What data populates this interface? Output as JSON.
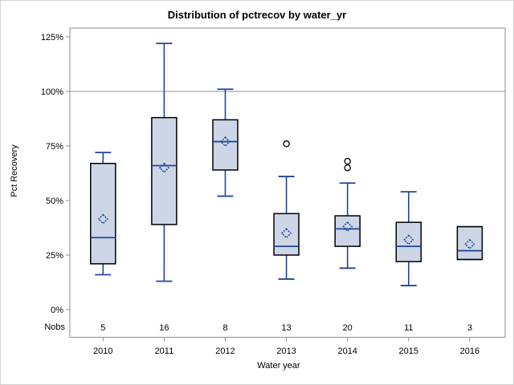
{
  "figure": {
    "title": "Distribution of pctrecov by water_yr",
    "y_axis_label": "Pct Recovery",
    "x_axis_label": "Water year",
    "nobs_row_label": "Nobs"
  },
  "colors": {
    "box_fill": "#cdd6e7",
    "box_border": "#000000",
    "blue_line": "#1f4698",
    "frame_gray": "#8e8e8e",
    "refline_gray": "#a8a8a8",
    "outlier_stroke": "#000000",
    "page_border": "#d2d2d2"
  },
  "chart_data": {
    "type": "boxplot",
    "title": "Distribution of pctrecov by water_yr",
    "xlabel": "Water year",
    "ylabel": "Pct Recovery",
    "ylim": [
      0,
      125
    ],
    "y_tick_values": [
      0,
      25,
      50,
      75,
      100,
      125
    ],
    "y_tick_labels": [
      "0%",
      "25%",
      "50%",
      "75%",
      "100%",
      "125%"
    ],
    "refline_pct": 100,
    "grid": false,
    "legend": "none",
    "categories": [
      "2010",
      "2011",
      "2012",
      "2013",
      "2014",
      "2015",
      "2016"
    ],
    "nobs": [
      5,
      16,
      8,
      13,
      20,
      11,
      3
    ],
    "boxes": [
      {
        "year": "2010",
        "nobs": 5,
        "whisker_low": 16,
        "q1": 21,
        "median": 33,
        "q3": 67,
        "whisker_high": 72,
        "mean": 41.5,
        "outliers": []
      },
      {
        "year": "2011",
        "nobs": 16,
        "whisker_low": 13,
        "q1": 39,
        "median": 66,
        "q3": 88,
        "whisker_high": 122,
        "mean": 65,
        "outliers": []
      },
      {
        "year": "2012",
        "nobs": 8,
        "whisker_low": 52,
        "q1": 64,
        "median": 77,
        "q3": 87,
        "whisker_high": 101,
        "mean": 77,
        "outliers": []
      },
      {
        "year": "2013",
        "nobs": 13,
        "whisker_low": 14,
        "q1": 25,
        "median": 29,
        "q3": 44,
        "whisker_high": 61,
        "mean": 35,
        "outliers": [
          76
        ]
      },
      {
        "year": "2014",
        "nobs": 20,
        "whisker_low": 19,
        "q1": 29,
        "median": 37,
        "q3": 43,
        "whisker_high": 58,
        "mean": 38,
        "outliers": [
          68,
          65
        ]
      },
      {
        "year": "2015",
        "nobs": 11,
        "whisker_low": 11,
        "q1": 22,
        "median": 29,
        "q3": 40,
        "whisker_high": 54,
        "mean": 32,
        "outliers": []
      },
      {
        "year": "2016",
        "nobs": 3,
        "whisker_low": 23,
        "q1": 23,
        "median": 27,
        "q3": 38,
        "whisker_high": 38,
        "mean": 30,
        "outliers": []
      }
    ]
  }
}
